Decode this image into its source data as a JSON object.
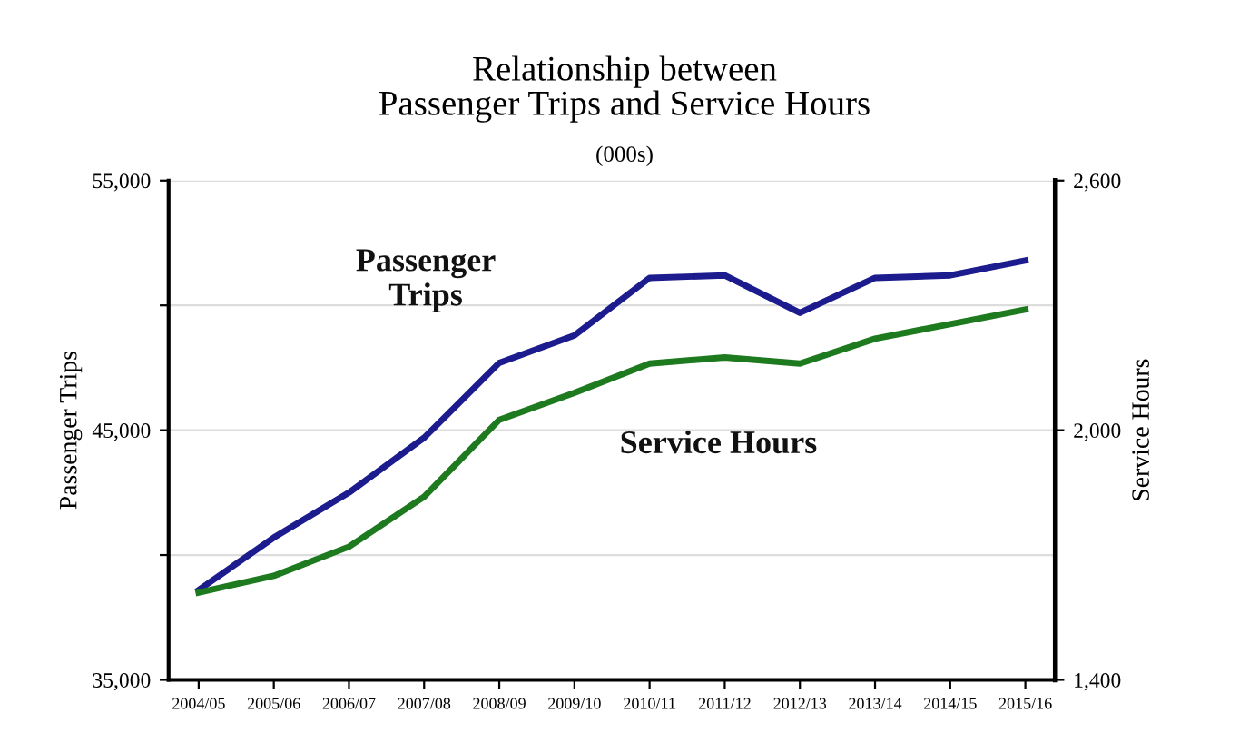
{
  "chart_data": {
    "type": "line",
    "title": "Relationship between\nPassenger Trips and Service Hours",
    "subtitle": "(000s)",
    "ylabel": "Passenger Trips",
    "y2label": "Service Hours",
    "categories": [
      "2004/05",
      "2005/06",
      "2006/07",
      "2007/08",
      "2008/09",
      "2009/10",
      "2010/11",
      "2011/12",
      "2012/13",
      "2013/14",
      "2014/15",
      "2015/16"
    ],
    "series": [
      {
        "name": "Passenger\nTrips",
        "color": "#1c1c8e",
        "values": [
          38600,
          40700,
          42500,
          44700,
          47700,
          48800,
          51100,
          51200,
          49700,
          51100,
          51200,
          51800
        ]
      },
      {
        "name": "Service Hours",
        "color": "#1e7a1e",
        "axis": "y2",
        "values": [
          1610,
          1650,
          1720,
          1840,
          2025,
          2090,
          2160,
          2175,
          2160,
          2220,
          2255,
          2290
        ]
      }
    ],
    "ylim": [
      35000,
      55000
    ],
    "yticks": [
      {
        "value": 35000,
        "label": "35,000"
      },
      {
        "value": 40000,
        "label": null
      },
      {
        "value": 45000,
        "label": "45,000"
      },
      {
        "value": 50000,
        "label": null
      },
      {
        "value": 55000,
        "label": "55,000"
      }
    ],
    "y2lim": [
      1400,
      2600
    ],
    "y2ticks": [
      {
        "value": 1400,
        "label": "1,400"
      },
      {
        "value": 2000,
        "label": "2,000"
      },
      {
        "value": 2600,
        "label": "2,600"
      }
    ],
    "grid": "y",
    "legend": false,
    "marker": "none",
    "line_style": "solid"
  }
}
